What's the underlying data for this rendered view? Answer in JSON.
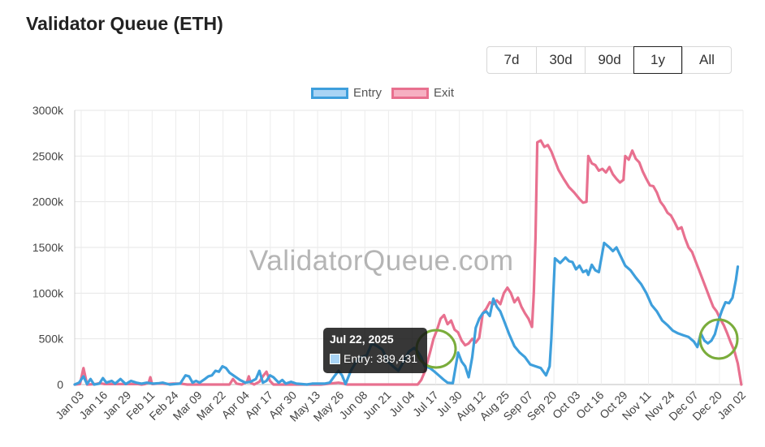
{
  "title": "Validator Queue (ETH)",
  "ranges": [
    "7d",
    "30d",
    "90d",
    "1y",
    "All"
  ],
  "active_range": "1y",
  "watermark": "ValidatorQueue.com",
  "tooltip": {
    "date": "Jul 22, 2025",
    "label": "Entry: 389,431"
  },
  "colors": {
    "entry": "#3e9fdc",
    "exit": "#e8708f",
    "highlight": "#7aac3b"
  },
  "chart_data": {
    "type": "line",
    "x_labels": [
      "Jan 03",
      "Jan 16",
      "Jan 29",
      "Feb 11",
      "Feb 24",
      "Mar 09",
      "Mar 22",
      "Apr 04",
      "Apr 17",
      "Apr 30",
      "May 13",
      "May 26",
      "Jun 08",
      "Jun 21",
      "Jul 04",
      "Jul 17",
      "Jul 30",
      "Aug 12",
      "Aug 25",
      "Sep 07",
      "Sep 20",
      "Oct 03",
      "Oct 16",
      "Oct 29",
      "Nov 11",
      "Nov 24",
      "Dec 07",
      "Dec 20",
      "Jan 02"
    ],
    "y_ticks": [
      "0",
      "500k",
      "1000k",
      "1500k",
      "2000k",
      "2500k",
      "3000k"
    ],
    "ylim": [
      0,
      3000
    ],
    "y_unit": "k",
    "grid": true,
    "legend_position": "top",
    "series": [
      {
        "name": "Entry",
        "color": "#3e9fdc",
        "points": [
          [
            0,
            0
          ],
          [
            5,
            20
          ],
          [
            10,
            90
          ],
          [
            14,
            5
          ],
          [
            18,
            60
          ],
          [
            22,
            0
          ],
          [
            28,
            10
          ],
          [
            32,
            70
          ],
          [
            36,
            20
          ],
          [
            42,
            40
          ],
          [
            46,
            10
          ],
          [
            52,
            60
          ],
          [
            58,
            5
          ],
          [
            64,
            40
          ],
          [
            70,
            20
          ],
          [
            76,
            10
          ],
          [
            82,
            20
          ],
          [
            90,
            10
          ],
          [
            96,
            15
          ],
          [
            100,
            20
          ],
          [
            108,
            0
          ],
          [
            114,
            5
          ],
          [
            120,
            10
          ],
          [
            126,
            100
          ],
          [
            130,
            90
          ],
          [
            134,
            20
          ],
          [
            138,
            40
          ],
          [
            142,
            20
          ],
          [
            148,
            60
          ],
          [
            152,
            90
          ],
          [
            156,
            100
          ],
          [
            160,
            150
          ],
          [
            164,
            140
          ],
          [
            168,
            200
          ],
          [
            172,
            180
          ],
          [
            176,
            130
          ],
          [
            182,
            90
          ],
          [
            188,
            50
          ],
          [
            194,
            20
          ],
          [
            200,
            30
          ],
          [
            206,
            60
          ],
          [
            210,
            150
          ],
          [
            214,
            20
          ],
          [
            218,
            40
          ],
          [
            222,
            100
          ],
          [
            226,
            80
          ],
          [
            232,
            20
          ],
          [
            236,
            50
          ],
          [
            240,
            10
          ],
          [
            246,
            30
          ],
          [
            252,
            10
          ],
          [
            258,
            5
          ],
          [
            264,
            0
          ],
          [
            270,
            10
          ],
          [
            278,
            10
          ],
          [
            284,
            10
          ],
          [
            290,
            20
          ],
          [
            296,
            100
          ],
          [
            300,
            150
          ],
          [
            304,
            100
          ],
          [
            308,
            5
          ],
          [
            314,
            150
          ],
          [
            320,
            250
          ],
          [
            326,
            300
          ],
          [
            332,
            320
          ],
          [
            338,
            450
          ],
          [
            344,
            420
          ],
          [
            350,
            380
          ],
          [
            356,
            250
          ],
          [
            362,
            200
          ],
          [
            368,
            150
          ],
          [
            374,
            250
          ],
          [
            380,
            360
          ],
          [
            386,
            400
          ],
          [
            390,
            360
          ],
          [
            394,
            300
          ],
          [
            398,
            200
          ],
          [
            404,
            180
          ],
          [
            408,
            150
          ],
          [
            414,
            100
          ],
          [
            420,
            50
          ],
          [
            424,
            20
          ],
          [
            430,
            15
          ],
          [
            436,
            350
          ],
          [
            440,
            250
          ],
          [
            444,
            200
          ],
          [
            448,
            80
          ],
          [
            452,
            300
          ],
          [
            456,
            620
          ],
          [
            460,
            720
          ],
          [
            464,
            780
          ],
          [
            468,
            800
          ],
          [
            472,
            750
          ],
          [
            476,
            940
          ],
          [
            480,
            850
          ],
          [
            484,
            800
          ],
          [
            488,
            700
          ],
          [
            494,
            550
          ],
          [
            500,
            420
          ],
          [
            506,
            350
          ],
          [
            512,
            300
          ],
          [
            518,
            220
          ],
          [
            524,
            200
          ],
          [
            530,
            180
          ],
          [
            536,
            100
          ],
          [
            540,
            200
          ],
          [
            542,
            500
          ],
          [
            546,
            1380
          ],
          [
            552,
            1330
          ],
          [
            558,
            1390
          ],
          [
            562,
            1350
          ],
          [
            566,
            1340
          ],
          [
            570,
            1260
          ],
          [
            574,
            1300
          ],
          [
            578,
            1230
          ],
          [
            582,
            1250
          ],
          [
            584,
            1200
          ],
          [
            588,
            1310
          ],
          [
            592,
            1250
          ],
          [
            596,
            1230
          ],
          [
            602,
            1550
          ],
          [
            608,
            1500
          ],
          [
            612,
            1460
          ],
          [
            616,
            1500
          ],
          [
            620,
            1420
          ],
          [
            626,
            1300
          ],
          [
            632,
            1250
          ],
          [
            638,
            1170
          ],
          [
            644,
            1100
          ],
          [
            650,
            1000
          ],
          [
            656,
            870
          ],
          [
            662,
            800
          ],
          [
            668,
            700
          ],
          [
            674,
            650
          ],
          [
            680,
            590
          ],
          [
            686,
            560
          ],
          [
            692,
            540
          ],
          [
            698,
            520
          ],
          [
            704,
            470
          ],
          [
            708,
            410
          ],
          [
            712,
            560
          ],
          [
            716,
            480
          ],
          [
            720,
            450
          ],
          [
            724,
            480
          ],
          [
            728,
            550
          ],
          [
            732,
            700
          ],
          [
            736,
            810
          ],
          [
            740,
            900
          ],
          [
            744,
            890
          ],
          [
            748,
            950
          ],
          [
            752,
            1150
          ],
          [
            754,
            1290
          ]
        ]
      },
      {
        "name": "Exit",
        "color": "#e8708f",
        "points": [
          [
            0,
            0
          ],
          [
            6,
            5
          ],
          [
            10,
            180
          ],
          [
            14,
            0
          ],
          [
            24,
            5
          ],
          [
            28,
            15
          ],
          [
            34,
            5
          ],
          [
            40,
            5
          ],
          [
            46,
            5
          ],
          [
            52,
            5
          ],
          [
            58,
            5
          ],
          [
            64,
            5
          ],
          [
            68,
            5
          ],
          [
            72,
            5
          ],
          [
            76,
            0
          ],
          [
            80,
            5
          ],
          [
            84,
            20
          ],
          [
            86,
            80
          ],
          [
            88,
            5
          ],
          [
            94,
            10
          ],
          [
            100,
            10
          ],
          [
            106,
            5
          ],
          [
            112,
            10
          ],
          [
            116,
            10
          ],
          [
            120,
            10
          ],
          [
            124,
            5
          ],
          [
            128,
            0
          ],
          [
            136,
            0
          ],
          [
            146,
            0
          ],
          [
            156,
            0
          ],
          [
            166,
            0
          ],
          [
            172,
            0
          ],
          [
            176,
            0
          ],
          [
            180,
            60
          ],
          [
            184,
            10
          ],
          [
            190,
            0
          ],
          [
            196,
            30
          ],
          [
            198,
            90
          ],
          [
            200,
            20
          ],
          [
            204,
            0
          ],
          [
            210,
            30
          ],
          [
            214,
            90
          ],
          [
            218,
            140
          ],
          [
            222,
            40
          ],
          [
            226,
            0
          ],
          [
            232,
            0
          ],
          [
            240,
            0
          ],
          [
            250,
            0
          ],
          [
            260,
            0
          ],
          [
            270,
            0
          ],
          [
            280,
            0
          ],
          [
            290,
            10
          ],
          [
            300,
            20
          ],
          [
            310,
            0
          ],
          [
            320,
            0
          ],
          [
            330,
            0
          ],
          [
            340,
            0
          ],
          [
            350,
            0
          ],
          [
            360,
            0
          ],
          [
            370,
            0
          ],
          [
            380,
            0
          ],
          [
            386,
            0
          ],
          [
            390,
            0
          ],
          [
            394,
            50
          ],
          [
            398,
            140
          ],
          [
            404,
            350
          ],
          [
            408,
            500
          ],
          [
            412,
            600
          ],
          [
            416,
            720
          ],
          [
            420,
            760
          ],
          [
            424,
            660
          ],
          [
            428,
            700
          ],
          [
            432,
            600
          ],
          [
            436,
            570
          ],
          [
            440,
            480
          ],
          [
            444,
            430
          ],
          [
            448,
            450
          ],
          [
            452,
            500
          ],
          [
            456,
            460
          ],
          [
            460,
            510
          ],
          [
            464,
            780
          ],
          [
            468,
            830
          ],
          [
            472,
            900
          ],
          [
            476,
            880
          ],
          [
            480,
            920
          ],
          [
            484,
            880
          ],
          [
            488,
            1000
          ],
          [
            492,
            1060
          ],
          [
            496,
            1000
          ],
          [
            500,
            900
          ],
          [
            504,
            950
          ],
          [
            508,
            850
          ],
          [
            512,
            780
          ],
          [
            516,
            720
          ],
          [
            520,
            630
          ],
          [
            522,
            1000
          ],
          [
            524,
            1600
          ],
          [
            526,
            2650
          ],
          [
            530,
            2670
          ],
          [
            534,
            2600
          ],
          [
            538,
            2620
          ],
          [
            542,
            2550
          ],
          [
            546,
            2450
          ],
          [
            550,
            2350
          ],
          [
            556,
            2250
          ],
          [
            562,
            2160
          ],
          [
            568,
            2100
          ],
          [
            574,
            2030
          ],
          [
            578,
            1990
          ],
          [
            582,
            2000
          ],
          [
            584,
            2500
          ],
          [
            588,
            2420
          ],
          [
            592,
            2400
          ],
          [
            596,
            2340
          ],
          [
            600,
            2360
          ],
          [
            604,
            2320
          ],
          [
            608,
            2380
          ],
          [
            612,
            2300
          ],
          [
            616,
            2250
          ],
          [
            620,
            2210
          ],
          [
            624,
            2240
          ],
          [
            626,
            2500
          ],
          [
            630,
            2460
          ],
          [
            634,
            2560
          ],
          [
            638,
            2470
          ],
          [
            642,
            2430
          ],
          [
            646,
            2330
          ],
          [
            650,
            2250
          ],
          [
            654,
            2180
          ],
          [
            658,
            2170
          ],
          [
            662,
            2100
          ],
          [
            666,
            2000
          ],
          [
            670,
            1950
          ],
          [
            674,
            1880
          ],
          [
            678,
            1850
          ],
          [
            682,
            1780
          ],
          [
            686,
            1700
          ],
          [
            690,
            1720
          ],
          [
            694,
            1600
          ],
          [
            698,
            1500
          ],
          [
            702,
            1450
          ],
          [
            706,
            1350
          ],
          [
            710,
            1250
          ],
          [
            714,
            1150
          ],
          [
            718,
            1050
          ],
          [
            722,
            950
          ],
          [
            726,
            850
          ],
          [
            730,
            800
          ],
          [
            734,
            720
          ],
          [
            738,
            650
          ],
          [
            742,
            560
          ],
          [
            746,
            460
          ],
          [
            750,
            370
          ],
          [
            754,
            230
          ],
          [
            758,
            0
          ]
        ]
      }
    ]
  }
}
